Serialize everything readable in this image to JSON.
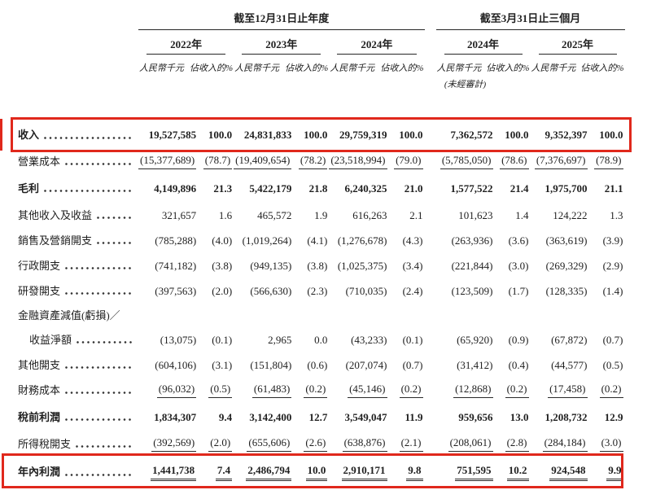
{
  "table": {
    "header": {
      "group1": {
        "title": "截至12月31日止年度",
        "years": [
          "2022年",
          "2023年",
          "2024年"
        ]
      },
      "group2": {
        "title": "截至3月31日止三個月",
        "years": [
          "2024年",
          "2025年"
        ]
      },
      "unit_label": "人民幣千元",
      "pct_label": "佔收入的%",
      "unaudited_note": "(未經審計)"
    },
    "rows": [
      {
        "label": "收入",
        "dots": true,
        "bold": true,
        "highlight": true,
        "values": [
          "19,527,585",
          "100.0",
          "24,831,833",
          "100.0",
          "29,759,319",
          "100.0",
          "7,362,572",
          "100.0",
          "9,352,397",
          "100.0"
        ]
      },
      {
        "label": "營業成本",
        "dots": true,
        "underline": "single",
        "values": [
          "(15,377,689)",
          "(78.7)",
          "(19,409,654)",
          "(78.2)",
          "(23,518,994)",
          "(79.0)",
          "(5,785,050)",
          "(78.6)",
          "(7,376,697)",
          "(78.9)"
        ]
      },
      {
        "label": "毛利",
        "dots": true,
        "bold": true,
        "values": [
          "4,149,896",
          "21.3",
          "5,422,179",
          "21.8",
          "6,240,325",
          "21.0",
          "1,577,522",
          "21.4",
          "1,975,700",
          "21.1"
        ]
      },
      {
        "label": "其他收入及收益",
        "dots": true,
        "values": [
          "321,657",
          "1.6",
          "465,572",
          "1.9",
          "616,263",
          "2.1",
          "101,623",
          "1.4",
          "124,222",
          "1.3"
        ]
      },
      {
        "label": "銷售及營銷開支",
        "dots": true,
        "values": [
          "(785,288)",
          "(4.0)",
          "(1,019,264)",
          "(4.1)",
          "(1,276,678)",
          "(4.3)",
          "(263,936)",
          "(3.6)",
          "(363,619)",
          "(3.9)"
        ]
      },
      {
        "label": "行政開支",
        "dots": true,
        "values": [
          "(741,182)",
          "(3.8)",
          "(949,135)",
          "(3.8)",
          "(1,025,375)",
          "(3.4)",
          "(221,844)",
          "(3.0)",
          "(269,329)",
          "(2.9)"
        ]
      },
      {
        "label": "研發開支",
        "dots": true,
        "values": [
          "(397,563)",
          "(2.0)",
          "(566,630)",
          "(2.3)",
          "(710,035)",
          "(2.4)",
          "(123,509)",
          "(1.7)",
          "(128,335)",
          "(1.4)"
        ]
      },
      {
        "label": "金融資產減值(虧損)／",
        "dots": false,
        "values": []
      },
      {
        "label": "收益淨額",
        "dots": true,
        "indent": true,
        "values": [
          "(13,075)",
          "(0.1)",
          "2,965",
          "0.0",
          "(43,233)",
          "(0.1)",
          "(65,920)",
          "(0.9)",
          "(67,872)",
          "(0.7)"
        ]
      },
      {
        "label": "其他開支",
        "dots": true,
        "values": [
          "(604,106)",
          "(3.1)",
          "(151,804)",
          "(0.6)",
          "(207,074)",
          "(0.7)",
          "(31,412)",
          "(0.4)",
          "(44,577)",
          "(0.5)"
        ]
      },
      {
        "label": "財務成本",
        "dots": true,
        "underline": "single",
        "values": [
          "(96,032)",
          "(0.5)",
          "(61,483)",
          "(0.2)",
          "(45,146)",
          "(0.2)",
          "(12,868)",
          "(0.2)",
          "(17,458)",
          "(0.2)"
        ]
      },
      {
        "label": "稅前利潤",
        "dots": true,
        "bold": true,
        "values": [
          "1,834,307",
          "9.4",
          "3,142,400",
          "12.7",
          "3,549,047",
          "11.9",
          "959,656",
          "13.0",
          "1,208,732",
          "12.9"
        ]
      },
      {
        "label": "所得稅開支",
        "dots": true,
        "underline": "single",
        "values": [
          "(392,569)",
          "(2.0)",
          "(655,606)",
          "(2.6)",
          "(638,876)",
          "(2.1)",
          "(208,061)",
          "(2.8)",
          "(284,184)",
          "(3.0)"
        ]
      },
      {
        "label": "年內利潤",
        "dots": true,
        "bold": true,
        "underline": "double",
        "highlight": true,
        "values": [
          "1,441,738",
          "7.4",
          "2,486,794",
          "10.0",
          "2,910,171",
          "9.8",
          "751,595",
          "10.2",
          "924,548",
          "9.9"
        ]
      }
    ]
  },
  "annotations": {
    "highlight_color": "#e0281c",
    "highlighted_rows": [
      "收入",
      "年內利潤"
    ]
  }
}
